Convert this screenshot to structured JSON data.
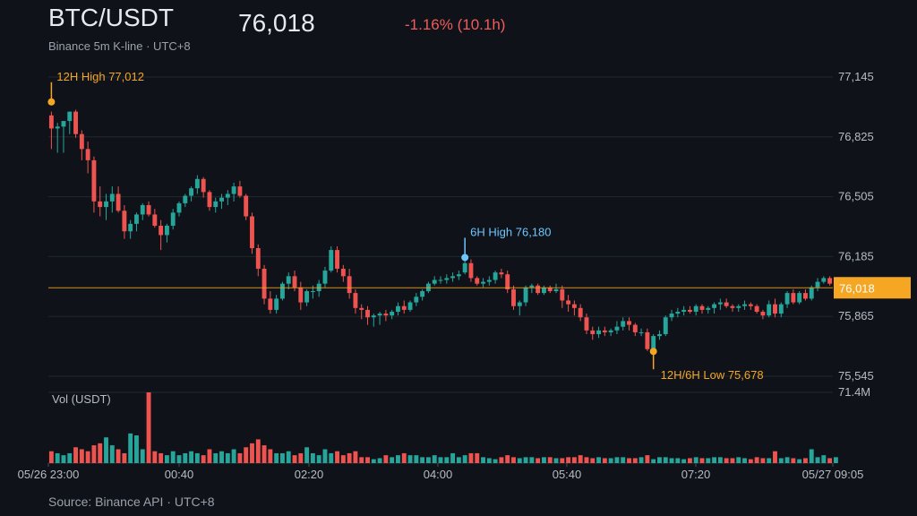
{
  "header": {
    "title": "BTC/USDT",
    "subtitle": "Binance 5m K-line · UTC+8",
    "price": "76,018",
    "change": "-1.16% (10.1h)"
  },
  "footer": {
    "source": "Source: Binance API · UTC+8"
  },
  "colors": {
    "up": "#26a69a",
    "down": "#ef5350",
    "accent": "#f5a623",
    "annotation_blue": "#6ec6ff",
    "background": "#0f1319"
  },
  "chart_data": {
    "type": "candlestick",
    "interval": "5m",
    "ylim": [
      75545,
      77145
    ],
    "y_ticks": [
      "77,145",
      "76,825",
      "76,505",
      "76,185",
      "75,865",
      "75,545"
    ],
    "y_tick_values": [
      77145,
      76825,
      76505,
      76185,
      75865,
      75545
    ],
    "x_ticks": [
      "05/26 23:00",
      "00:40",
      "02:20",
      "04:00",
      "05:40",
      "07:20",
      "05/27 09:05"
    ],
    "volume": {
      "label": "Vol (USDT)",
      "max_label": "71.4M",
      "max": 71.4
    },
    "current_price": {
      "value": 76018,
      "label": "76,018"
    },
    "annotations": [
      {
        "label": "12H High 77,012",
        "value": 77012,
        "candle": 0,
        "color": "#f5a623",
        "position": "above"
      },
      {
        "label": "6H High 76,180",
        "value": 76180,
        "candle": 68,
        "color": "#6ec6ff",
        "position": "above"
      },
      {
        "label": "12H/6H Low 75,678",
        "value": 75678,
        "candle": 99,
        "color": "#f5a623",
        "position": "below"
      }
    ],
    "candles": [
      [
        76940,
        76960,
        76760,
        76870
      ],
      [
        76870,
        76900,
        76740,
        76880
      ],
      [
        76880,
        76900,
        76740,
        76910
      ],
      [
        76910,
        76950,
        76840,
        76960
      ],
      [
        76960,
        76970,
        76820,
        76840
      ],
      [
        76840,
        76860,
        76700,
        76760
      ],
      [
        76760,
        76800,
        76630,
        76700
      ],
      [
        76700,
        76720,
        76420,
        76480
      ],
      [
        76480,
        76560,
        76400,
        76450
      ],
      [
        76450,
        76520,
        76380,
        76480
      ],
      [
        76480,
        76560,
        76420,
        76520
      ],
      [
        76520,
        76560,
        76420,
        76430
      ],
      [
        76430,
        76460,
        76280,
        76320
      ],
      [
        76320,
        76380,
        76280,
        76360
      ],
      [
        76360,
        76420,
        76320,
        76410
      ],
      [
        76410,
        76470,
        76380,
        76460
      ],
      [
        76460,
        76480,
        76400,
        76410
      ],
      [
        76410,
        76440,
        76340,
        76350
      ],
      [
        76350,
        76380,
        76220,
        76300
      ],
      [
        76300,
        76360,
        76260,
        76350
      ],
      [
        76350,
        76440,
        76330,
        76420
      ],
      [
        76420,
        76480,
        76400,
        76470
      ],
      [
        76470,
        76520,
        76450,
        76510
      ],
      [
        76510,
        76560,
        76480,
        76550
      ],
      [
        76550,
        76620,
        76520,
        76600
      ],
      [
        76600,
        76610,
        76500,
        76530
      ],
      [
        76530,
        76540,
        76430,
        76450
      ],
      [
        76450,
        76500,
        76420,
        76480
      ],
      [
        76480,
        76520,
        76440,
        76500
      ],
      [
        76500,
        76540,
        76460,
        76520
      ],
      [
        76520,
        76580,
        76480,
        76560
      ],
      [
        76560,
        76590,
        76500,
        76510
      ],
      [
        76510,
        76520,
        76380,
        76400
      ],
      [
        76400,
        76420,
        76200,
        76230
      ],
      [
        76230,
        76250,
        76080,
        76120
      ],
      [
        76120,
        76140,
        75930,
        75960
      ],
      [
        75960,
        76000,
        75880,
        75900
      ],
      [
        75900,
        75980,
        75880,
        75960
      ],
      [
        75960,
        76050,
        75950,
        76040
      ],
      [
        76040,
        76100,
        76010,
        76080
      ],
      [
        76080,
        76110,
        76000,
        76020
      ],
      [
        76020,
        76050,
        75900,
        75940
      ],
      [
        75940,
        76010,
        75920,
        76000
      ],
      [
        76000,
        76030,
        75960,
        76000
      ],
      [
        76000,
        76060,
        75970,
        76040
      ],
      [
        76040,
        76130,
        76020,
        76110
      ],
      [
        76110,
        76240,
        76100,
        76220
      ],
      [
        76220,
        76240,
        76100,
        76120
      ],
      [
        76120,
        76140,
        76050,
        76080
      ],
      [
        76080,
        76120,
        75960,
        75990
      ],
      [
        75990,
        76010,
        75880,
        75910
      ],
      [
        75910,
        75930,
        75850,
        75900
      ],
      [
        75900,
        75920,
        75820,
        75860
      ],
      [
        75860,
        75880,
        75810,
        75870
      ],
      [
        75870,
        75890,
        75820,
        75880
      ],
      [
        75880,
        75900,
        75840,
        75870
      ],
      [
        75870,
        75900,
        75850,
        75890
      ],
      [
        75890,
        75940,
        75870,
        75920
      ],
      [
        75920,
        75950,
        75880,
        75900
      ],
      [
        75900,
        75950,
        75890,
        75940
      ],
      [
        75940,
        75990,
        75920,
        75970
      ],
      [
        75970,
        76010,
        75950,
        76000
      ],
      [
        76000,
        76050,
        75990,
        76040
      ],
      [
        76040,
        76080,
        76030,
        76060
      ],
      [
        76060,
        76080,
        76040,
        76060
      ],
      [
        76060,
        76090,
        76040,
        76070
      ],
      [
        76070,
        76100,
        76050,
        76080
      ],
      [
        76080,
        76110,
        76060,
        76090
      ],
      [
        76100,
        76180,
        76090,
        76150
      ],
      [
        76150,
        76170,
        76050,
        76070
      ],
      [
        76070,
        76080,
        76030,
        76040
      ],
      [
        76040,
        76070,
        76020,
        76050
      ],
      [
        76050,
        76080,
        76030,
        76060
      ],
      [
        76060,
        76110,
        76040,
        76100
      ],
      [
        76100,
        76120,
        76070,
        76090
      ],
      [
        76090,
        76110,
        75990,
        76010
      ],
      [
        76010,
        76030,
        75900,
        75920
      ],
      [
        75920,
        75950,
        75870,
        75940
      ],
      [
        75940,
        76030,
        75920,
        76020
      ],
      [
        76020,
        76040,
        75990,
        76030
      ],
      [
        76030,
        76040,
        75980,
        75990
      ],
      [
        75990,
        76030,
        75980,
        76020
      ],
      [
        76020,
        76030,
        75990,
        76000
      ],
      [
        76000,
        76040,
        75990,
        76010
      ],
      [
        76010,
        76030,
        75910,
        75950
      ],
      [
        75950,
        75980,
        75890,
        75930
      ],
      [
        75930,
        75950,
        75870,
        75910
      ],
      [
        75910,
        75930,
        75840,
        75860
      ],
      [
        75860,
        75880,
        75770,
        75790
      ],
      [
        75790,
        75810,
        75740,
        75770
      ],
      [
        75770,
        75810,
        75750,
        75790
      ],
      [
        75790,
        75810,
        75760,
        75780
      ],
      [
        75780,
        75800,
        75760,
        75790
      ],
      [
        75790,
        75840,
        75770,
        75810
      ],
      [
        75810,
        75860,
        75790,
        75840
      ],
      [
        75840,
        75860,
        75790,
        75820
      ],
      [
        75820,
        75830,
        75760,
        75780
      ],
      [
        75780,
        75800,
        75760,
        75780
      ],
      [
        75780,
        75800,
        75680,
        75690
      ],
      [
        75690,
        75770,
        75678,
        75760
      ],
      [
        75760,
        75790,
        75740,
        75770
      ],
      [
        75770,
        75870,
        75760,
        75860
      ],
      [
        75860,
        75900,
        75840,
        75880
      ],
      [
        75880,
        75910,
        75860,
        75890
      ],
      [
        75890,
        75920,
        75870,
        75900
      ],
      [
        75900,
        75920,
        75880,
        75890
      ],
      [
        75890,
        75930,
        75870,
        75920
      ],
      [
        75920,
        75930,
        75880,
        75900
      ],
      [
        75900,
        75920,
        75880,
        75910
      ],
      [
        75910,
        75940,
        75880,
        75930
      ],
      [
        75930,
        75960,
        75900,
        75940
      ],
      [
        75940,
        75960,
        75910,
        75920
      ],
      [
        75920,
        75930,
        75890,
        75910
      ],
      [
        75910,
        75930,
        75890,
        75920
      ],
      [
        75920,
        75950,
        75900,
        75930
      ],
      [
        75930,
        75940,
        75900,
        75920
      ],
      [
        75920,
        75930,
        75880,
        75890
      ],
      [
        75890,
        75900,
        75850,
        75870
      ],
      [
        75870,
        75950,
        75860,
        75930
      ],
      [
        75930,
        75960,
        75860,
        75880
      ],
      [
        75880,
        75940,
        75860,
        75930
      ],
      [
        75930,
        76000,
        75910,
        75990
      ],
      [
        75990,
        76010,
        75930,
        75940
      ],
      [
        75940,
        76000,
        75930,
        75990
      ],
      [
        75990,
        76010,
        75950,
        75960
      ],
      [
        75960,
        76030,
        75950,
        76020
      ],
      [
        76020,
        76070,
        76000,
        76050
      ],
      [
        76050,
        76080,
        76040,
        76070
      ],
      [
        76070,
        76080,
        76030,
        76040
      ]
    ],
    "volumes": [
      12,
      10,
      8,
      10,
      16,
      14,
      12,
      18,
      20,
      26,
      18,
      14,
      10,
      30,
      28,
      14,
      71.4,
      12,
      10,
      8,
      12,
      8,
      10,
      12,
      10,
      8,
      14,
      10,
      12,
      10,
      14,
      10,
      16,
      20,
      24,
      18,
      14,
      10,
      10,
      12,
      8,
      10,
      16,
      10,
      8,
      14,
      10,
      12,
      8,
      10,
      12,
      6,
      6,
      4,
      5,
      8,
      6,
      8,
      10,
      8,
      8,
      6,
      6,
      8,
      6,
      6,
      10,
      6,
      8,
      10,
      10,
      6,
      5,
      4,
      6,
      8,
      6,
      5,
      6,
      6,
      5,
      6,
      6,
      5,
      5,
      6,
      6,
      8,
      6,
      5,
      6,
      5,
      5,
      6,
      6,
      5,
      5,
      6,
      8,
      4,
      6,
      6,
      5,
      5,
      4,
      5,
      6,
      5,
      5,
      6,
      6,
      5,
      5,
      6,
      5,
      4,
      6,
      5,
      5,
      12,
      5,
      6,
      5,
      4,
      5,
      14,
      6,
      8,
      5,
      6
    ]
  }
}
